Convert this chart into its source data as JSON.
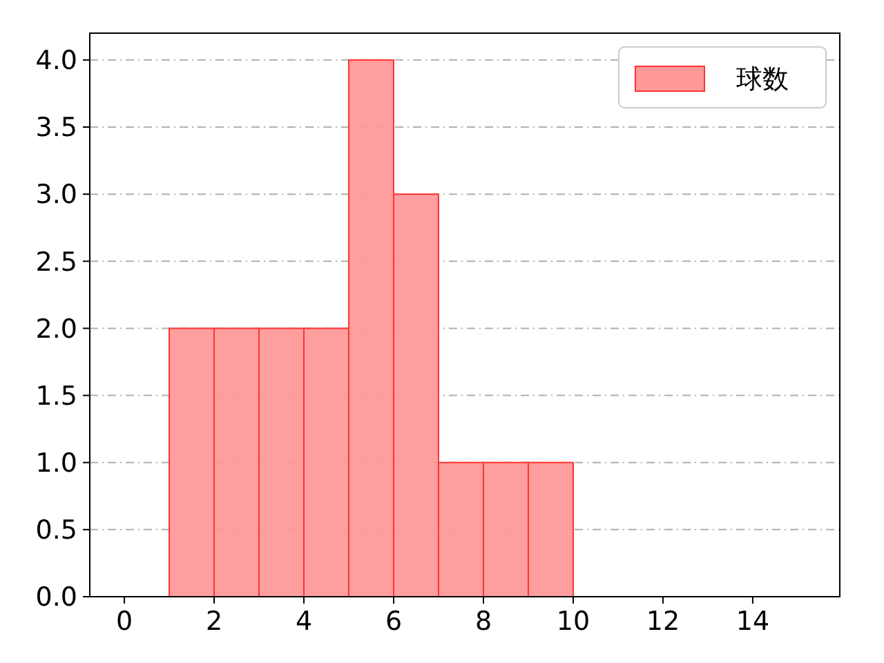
{
  "chart_data": {
    "type": "histogram",
    "bins": [
      1,
      2,
      3,
      4,
      5,
      6,
      7,
      8,
      9,
      10
    ],
    "series": [
      {
        "name": "球数",
        "color": "#ff9999",
        "values": [
          2,
          2,
          2,
          2,
          4,
          3,
          1,
          1,
          1
        ]
      }
    ],
    "xlim": [
      -0.77,
      15.94
    ],
    "xticks": [
      0,
      2,
      4,
      6,
      8,
      10,
      12,
      14
    ],
    "ylim": [
      0,
      4.2
    ],
    "yticks": [
      {
        "value": 0,
        "label": "0.0"
      },
      {
        "value": 0.5,
        "label": "0.5"
      },
      {
        "value": 1,
        "label": "1.0"
      },
      {
        "value": 1.5,
        "label": "1.5"
      },
      {
        "value": 2,
        "label": "2.0"
      },
      {
        "value": 2.5,
        "label": "2.5"
      },
      {
        "value": 3,
        "label": "3.0"
      },
      {
        "value": 3.5,
        "label": "3.5"
      },
      {
        "value": 4,
        "label": "4.0"
      }
    ],
    "grid": "y",
    "legend": "top right"
  }
}
